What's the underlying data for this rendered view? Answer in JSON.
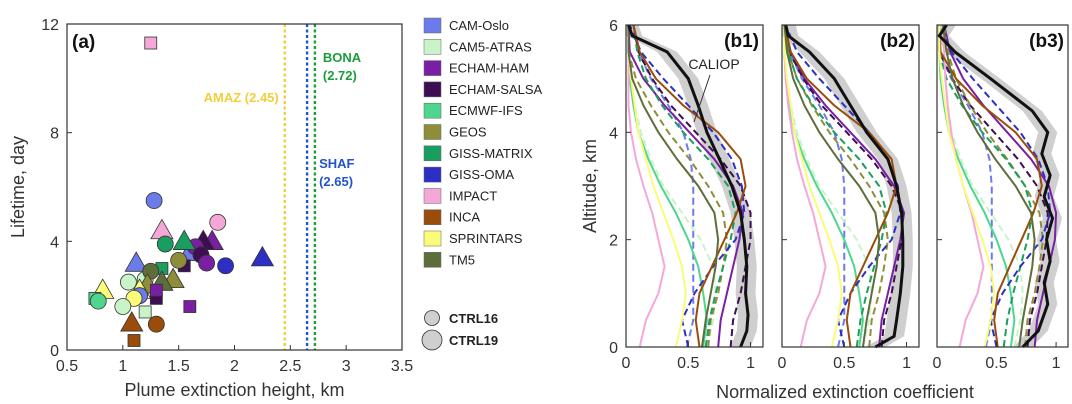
{
  "colors": {
    "CAM-Oslo": "#6b7bea",
    "CAM5-ATRAS": "#c8f4c8",
    "ECHAM-HAM": "#7a1fa3",
    "ECHAM-SALSA": "#3d0f52",
    "ECMWF-IFS": "#4fd68e",
    "GEOS": "#8e8e3a",
    "GISS-MATRIX": "#1a9e5f",
    "GISS-OMA": "#2d2fc4",
    "IMPACT": "#f5a8d8",
    "INCA": "#9a4c0a",
    "SPRINTARS": "#fbfb7a",
    "TM5": "#5d6e3a",
    "CALIOP": "#111111"
  },
  "chart_data": [
    {
      "type": "scatter",
      "panel": "(a)",
      "xlabel": "Plume extinction height, km",
      "ylabel": "Lifetime, day",
      "xlim": [
        0.5,
        3.5
      ],
      "ylim": [
        0,
        12
      ],
      "xticks": [
        "0.5",
        "1",
        "1.5",
        "2",
        "2.5",
        "3",
        "3.5"
      ],
      "yticks": [
        "0",
        "4",
        "8",
        "12"
      ],
      "legend": {
        "models": [
          "CAM-Oslo",
          "CAM5-ATRAS",
          "ECHAM-HAM",
          "ECHAM-SALSA",
          "ECMWF-IFS",
          "GEOS",
          "GISS-MATRIX",
          "GISS-OMA",
          "IMPACT",
          "INCA",
          "SPRINTARS",
          "TM5"
        ],
        "experiments": [
          "CTRL16",
          "CTRL19"
        ]
      },
      "reference_lines": [
        {
          "label": "AMAZ (2.45)",
          "x": 2.45,
          "color": "#f2cf3a"
        },
        {
          "label": "SHAF (2.65)",
          "x": 2.65,
          "color": "#2255cc"
        },
        {
          "label": "BONA (2.72)",
          "x": 2.72,
          "color": "#1a9e3a"
        }
      ],
      "points": [
        {
          "model": "IMPACT",
          "shape": "square",
          "x": 1.25,
          "y": 11.3
        },
        {
          "model": "CAM-Oslo",
          "shape": "circle",
          "x": 1.28,
          "y": 5.5
        },
        {
          "model": "IMPACT",
          "shape": "circle",
          "x": 1.85,
          "y": 4.7
        },
        {
          "model": "IMPACT",
          "shape": "triangle",
          "x": 1.35,
          "y": 4.4
        },
        {
          "model": "CAM-Oslo",
          "shape": "triangle",
          "x": 1.6,
          "y": 3.6
        },
        {
          "model": "GISS-OMA",
          "shape": "triangle",
          "x": 2.25,
          "y": 3.4
        },
        {
          "model": "GISS-OMA",
          "shape": "circle",
          "x": 1.92,
          "y": 3.1
        },
        {
          "model": "ECHAM-HAM",
          "shape": "triangle",
          "x": 1.8,
          "y": 4.0
        },
        {
          "model": "ECHAM-SALSA",
          "shape": "triangle",
          "x": 1.72,
          "y": 4.0
        },
        {
          "model": "ECHAM-HAM",
          "shape": "circle",
          "x": 1.65,
          "y": 3.8
        },
        {
          "model": "ECHAM-SALSA",
          "shape": "circle",
          "x": 1.7,
          "y": 3.5
        },
        {
          "model": "ECHAM-HAM",
          "shape": "circle",
          "x": 1.75,
          "y": 3.2
        },
        {
          "model": "ECHAM-SALSA",
          "shape": "square",
          "x": 1.55,
          "y": 3.1
        },
        {
          "model": "GISS-MATRIX",
          "shape": "triangle",
          "x": 1.55,
          "y": 4.0
        },
        {
          "model": "GISS-MATRIX",
          "shape": "circle",
          "x": 1.38,
          "y": 3.9
        },
        {
          "model": "GEOS",
          "shape": "circle",
          "x": 1.5,
          "y": 3.3
        },
        {
          "model": "GISS-MATRIX",
          "shape": "square",
          "x": 1.35,
          "y": 3.0
        },
        {
          "model": "GEOS",
          "shape": "triangle",
          "x": 1.45,
          "y": 2.6
        },
        {
          "model": "TM5",
          "shape": "triangle",
          "x": 1.35,
          "y": 2.5
        },
        {
          "model": "CAM5-ATRAS",
          "shape": "circle",
          "x": 1.2,
          "y": 2.6
        },
        {
          "model": "CAM-Oslo",
          "shape": "triangle",
          "x": 1.12,
          "y": 3.2
        },
        {
          "model": "TM5",
          "shape": "circle",
          "x": 1.25,
          "y": 2.9
        },
        {
          "model": "GEOS",
          "shape": "triangle",
          "x": 1.22,
          "y": 2.4
        },
        {
          "model": "CAM5-ATRAS",
          "shape": "circle",
          "x": 1.05,
          "y": 2.5
        },
        {
          "model": "SPRINTARS",
          "shape": "triangle",
          "x": 1.15,
          "y": 2.2
        },
        {
          "model": "CAM-Oslo",
          "shape": "circle",
          "x": 1.15,
          "y": 2.0
        },
        {
          "model": "SPRINTARS",
          "shape": "circle",
          "x": 1.1,
          "y": 1.9
        },
        {
          "model": "SPRINTARS",
          "shape": "triangle",
          "x": 0.82,
          "y": 2.2
        },
        {
          "model": "CAM5-ATRAS",
          "shape": "circle",
          "x": 1.0,
          "y": 1.6
        },
        {
          "model": "ECMWF-IFS",
          "shape": "square",
          "x": 0.75,
          "y": 1.9
        },
        {
          "model": "ECMWF-IFS",
          "shape": "circle",
          "x": 0.78,
          "y": 1.8
        },
        {
          "model": "ECHAM-SALSA",
          "shape": "square",
          "x": 1.3,
          "y": 1.9
        },
        {
          "model": "ECHAM-HAM",
          "shape": "square",
          "x": 1.3,
          "y": 2.2
        },
        {
          "model": "ECHAM-HAM",
          "shape": "square",
          "x": 1.6,
          "y": 1.6
        },
        {
          "model": "CAM5-ATRAS",
          "shape": "square",
          "x": 1.2,
          "y": 1.4
        },
        {
          "model": "INCA",
          "shape": "triangle",
          "x": 1.08,
          "y": 1.0
        },
        {
          "model": "INCA",
          "shape": "circle",
          "x": 1.3,
          "y": 0.95
        },
        {
          "model": "INCA",
          "shape": "square",
          "x": 1.1,
          "y": 0.35
        }
      ]
    },
    {
      "type": "line",
      "panel": "(b1)",
      "xlabel": "Normalized extinction coefficient",
      "ylabel": "Altitude, km",
      "xlim": [
        0,
        1.1
      ],
      "ylim": [
        0,
        6
      ],
      "xticks": [
        "0",
        "0.5",
        "1"
      ],
      "yticks": [
        "0",
        "2",
        "4",
        "6"
      ],
      "annotation": "CALIOP",
      "observation": {
        "name": "CALIOP",
        "altitude": [
          0,
          0.3,
          0.6,
          1,
          1.5,
          2,
          2.5,
          3,
          3.5,
          4,
          4.5,
          5,
          5.5,
          5.8,
          6
        ],
        "value": [
          0.92,
          0.97,
          0.98,
          0.96,
          0.97,
          0.95,
          0.92,
          0.85,
          0.75,
          0.65,
          0.58,
          0.5,
          0.33,
          0.05,
          0.02
        ]
      }
    },
    {
      "type": "line",
      "panel": "(b2)",
      "xlabel": "",
      "ylabel": "",
      "xlim": [
        0,
        1.1
      ],
      "ylim": [
        0,
        6
      ],
      "xticks": [
        "0",
        "0.5",
        "1"
      ],
      "observation": {
        "name": "CALIOP",
        "altitude": [
          0,
          0.2,
          0.5,
          1,
          1.5,
          2,
          2.5,
          3,
          3.5,
          4,
          4.5,
          5,
          5.5,
          5.8,
          6
        ],
        "value": [
          0.75,
          0.9,
          0.92,
          0.95,
          0.97,
          0.97,
          0.96,
          0.92,
          0.85,
          0.68,
          0.55,
          0.42,
          0.22,
          0.05,
          0.03
        ]
      }
    },
    {
      "type": "line",
      "panel": "(b3)",
      "xlabel": "",
      "ylabel": "",
      "xlim": [
        0,
        1.1
      ],
      "ylim": [
        0,
        6
      ],
      "xticks": [
        "0",
        "0.5",
        "1"
      ],
      "observation": {
        "name": "CALIOP",
        "altitude": [
          0,
          0.3,
          0.8,
          1.2,
          1.6,
          2,
          2.4,
          2.8,
          3.2,
          3.6,
          4,
          4.4,
          5,
          5.5,
          5.8,
          6
        ],
        "value": [
          0.72,
          0.85,
          0.93,
          0.9,
          0.95,
          0.92,
          0.97,
          0.9,
          0.95,
          0.88,
          0.93,
          0.8,
          0.45,
          0.15,
          0.02,
          0.08
        ]
      }
    }
  ]
}
